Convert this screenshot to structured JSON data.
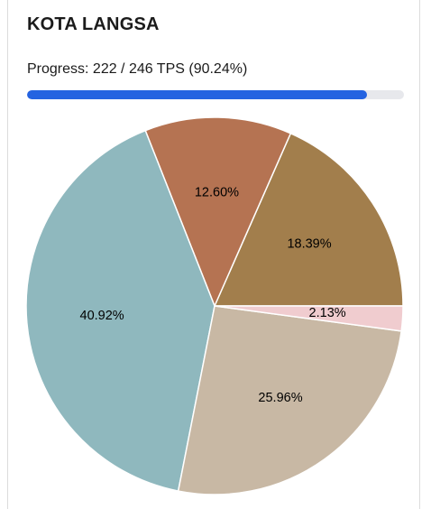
{
  "header": {
    "title": "KOTA LANGSA"
  },
  "progress": {
    "text": "Progress: 222 / 246 TPS (90.24%)",
    "done": 222,
    "total": 246,
    "fraction": 0.9024,
    "color": "#2463e1"
  },
  "chart_data": {
    "type": "pie",
    "slices": [
      {
        "value": 18.39,
        "label": "18.39%",
        "color": "#a27e4c"
      },
      {
        "value": 12.6,
        "label": "12.60%",
        "color": "#b57352"
      },
      {
        "value": 40.92,
        "label": "40.92%",
        "color": "#8fb8be"
      },
      {
        "value": 25.96,
        "label": "25.96%",
        "color": "#c8b8a4"
      },
      {
        "value": 2.13,
        "label": "2.13%",
        "color": "#f0cccf"
      }
    ]
  }
}
